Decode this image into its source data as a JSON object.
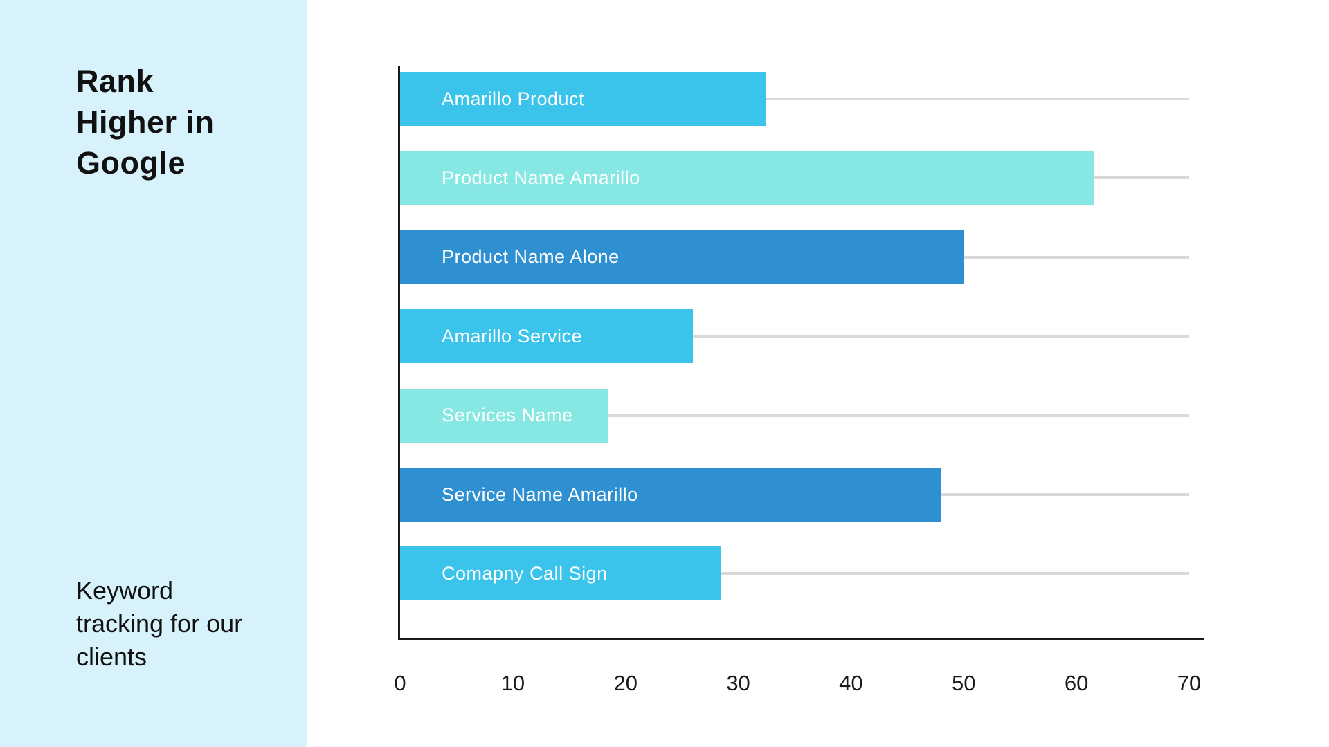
{
  "sidebar": {
    "title": "Rank Higher in Google",
    "subtitle": "Keyword tracking for our clients",
    "background_color": "#D7F2FB",
    "text_color": "#111111"
  },
  "chart_data": {
    "type": "bar",
    "orientation": "horizontal",
    "categories": [
      "Amarillo Product",
      "Product Name Amarillo",
      "Product Name Alone",
      "Amarillo Service",
      "Services Name",
      "Service Name Amarillo",
      "Comapny Call Sign"
    ],
    "values": [
      32.5,
      61.5,
      50,
      26,
      18.5,
      48,
      28.5
    ],
    "bar_colors": [
      "#3AC3EB",
      "#87E8E3",
      "#2E90D1",
      "#3AC3EB",
      "#87E8E3",
      "#2E90D1",
      "#3AC3EB"
    ],
    "bar_label_color": "#FFFFFF",
    "xlim": [
      0,
      70
    ],
    "x_ticks": [
      "0",
      "10",
      "20",
      "30",
      "40",
      "50",
      "60",
      "70"
    ],
    "grid": "per-bar horizontal gridlines to right edge",
    "gridline_color": "#D9D9D9",
    "axis_color": "#1A1A1A",
    "tick_label_color": "#1A1A1A",
    "legend": "none"
  }
}
